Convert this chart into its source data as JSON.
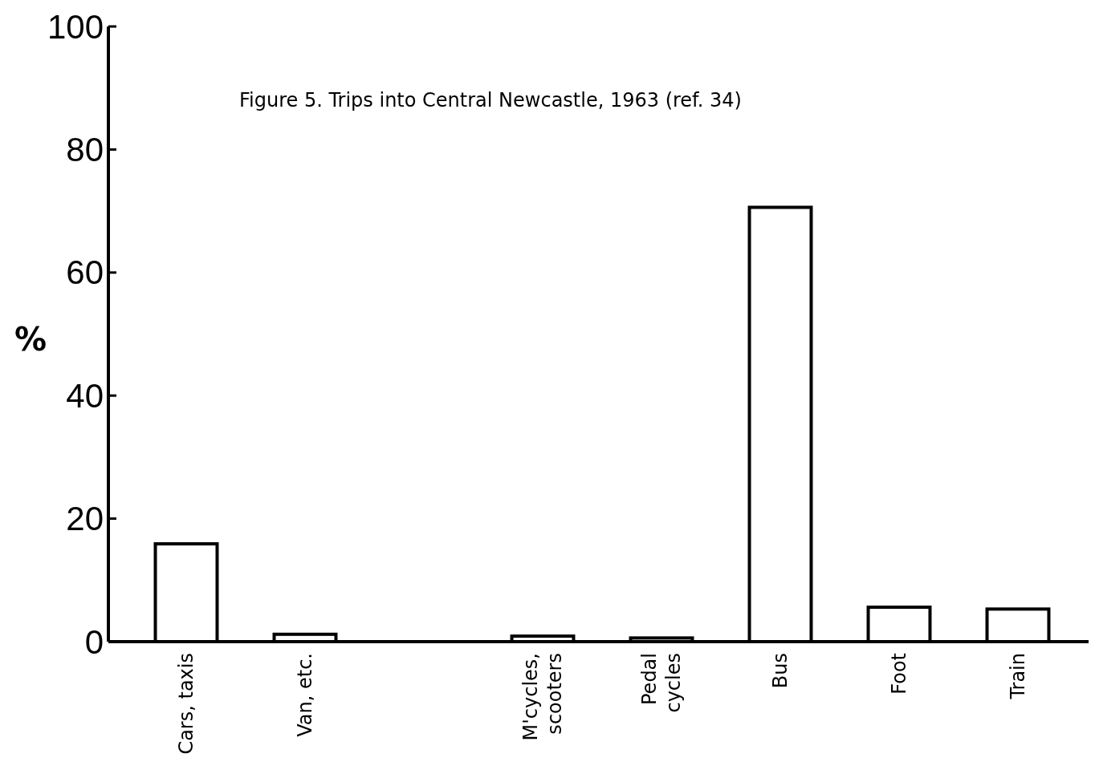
{
  "chart_data": {
    "type": "bar",
    "title": "Figure 5.  Trips into Central Newcastle, 1963 (ref. 34)",
    "ylabel": "%",
    "categories": [
      "Cars, taxis",
      "Van, etc.",
      null,
      "M'cycles,\nscooters",
      "Pedal\ncycles",
      "Bus",
      "Foot",
      "Train"
    ],
    "values": [
      15.9,
      1.2,
      null,
      0.9,
      0.6,
      70.6,
      5.6,
      5.3
    ],
    "color": "#ffffff",
    "ylim": [
      0,
      100
    ],
    "yticks": [
      0,
      20,
      40,
      60,
      80,
      100
    ],
    "grid": false
  }
}
